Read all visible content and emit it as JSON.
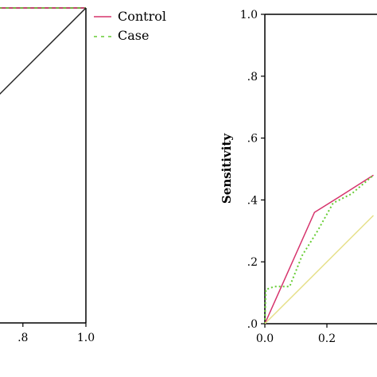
{
  "chart_data": [
    {
      "type": "line",
      "title": "",
      "xlabel": "",
      "ylabel": "",
      "xlim": [
        0.7,
        1.0
      ],
      "ylim": [
        0.0,
        1.0
      ],
      "x_tick_labels": [
        ".8",
        "1.0"
      ],
      "grid": false,
      "legend": {
        "placement": "top-right-outside",
        "entries": [
          "Control",
          "Case"
        ]
      },
      "series": [
        {
          "name": "Control",
          "color": "#d6336c",
          "style": "solid",
          "x": [
            0.7,
            1.0
          ],
          "y": [
            1.0,
            1.0
          ]
        },
        {
          "name": "Case",
          "color": "#66cc33",
          "style": "dashed",
          "x": [
            0.7,
            1.0
          ],
          "y": [
            1.0,
            1.0
          ]
        },
        {
          "name": "",
          "color": "#222222",
          "style": "solid",
          "x": [
            0.7,
            1.0
          ],
          "y": [
            0.7,
            1.0
          ]
        }
      ]
    },
    {
      "type": "line",
      "title": "",
      "xlabel": "",
      "ylabel": "Sensitivity",
      "xlim": [
        0.0,
        0.35
      ],
      "ylim": [
        0.0,
        1.0
      ],
      "x_tick_labels": [
        "0.0",
        "0.2"
      ],
      "y_tick_labels": [
        ".0",
        ".2",
        ".4",
        ".6",
        ".8",
        "1.0"
      ],
      "grid": false,
      "series": [
        {
          "name": "Control",
          "color": "#d6336c",
          "style": "solid",
          "x": [
            0.0,
            0.16,
            0.24,
            0.35
          ],
          "y": [
            0.0,
            0.36,
            0.41,
            0.48
          ]
        },
        {
          "name": "Case",
          "color": "#66cc33",
          "style": "dotted",
          "x": [
            0.0,
            0.003,
            0.03,
            0.08,
            0.12,
            0.17,
            0.22,
            0.28,
            0.35
          ],
          "y": [
            0.0,
            0.11,
            0.12,
            0.12,
            0.22,
            0.3,
            0.39,
            0.42,
            0.48
          ]
        },
        {
          "name": "",
          "color": "#e6e08a",
          "style": "solid",
          "x": [
            0.0,
            0.35
          ],
          "y": [
            0.0,
            0.35
          ]
        }
      ]
    }
  ]
}
